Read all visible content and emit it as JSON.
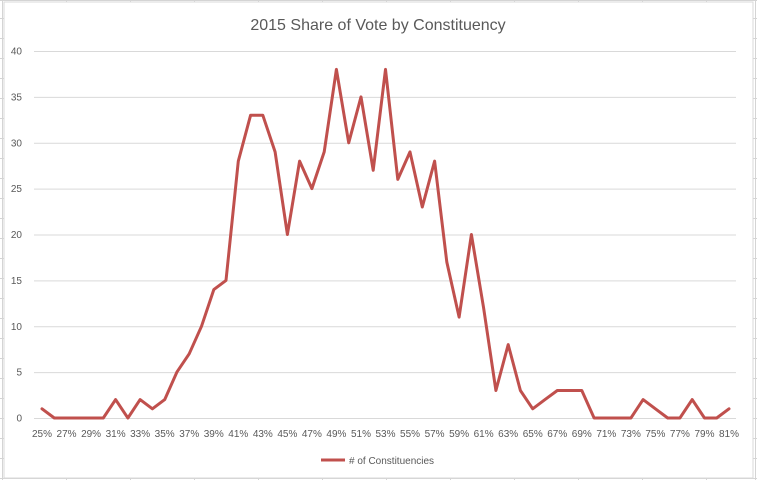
{
  "chart_data": {
    "type": "line",
    "title": "2015 Share of Vote by Constituency",
    "xlabel": "",
    "ylabel": "",
    "ylim": [
      0,
      40
    ],
    "yticks": [
      0,
      5,
      10,
      15,
      20,
      25,
      30,
      35,
      40
    ],
    "grid": true,
    "legend_position": "bottom",
    "categories": [
      "25%",
      "26%",
      "27%",
      "28%",
      "29%",
      "30%",
      "31%",
      "32%",
      "33%",
      "34%",
      "35%",
      "36%",
      "37%",
      "38%",
      "39%",
      "40%",
      "41%",
      "42%",
      "43%",
      "44%",
      "45%",
      "46%",
      "47%",
      "48%",
      "49%",
      "50%",
      "51%",
      "52%",
      "53%",
      "54%",
      "55%",
      "56%",
      "57%",
      "58%",
      "59%",
      "60%",
      "61%",
      "62%",
      "63%",
      "64%",
      "65%",
      "66%",
      "67%",
      "68%",
      "69%",
      "70%",
      "71%",
      "72%",
      "73%",
      "74%",
      "75%",
      "76%",
      "77%",
      "78%",
      "79%",
      "80%",
      "81%"
    ],
    "tick_labels": [
      "25%",
      "27%",
      "29%",
      "31%",
      "33%",
      "35%",
      "37%",
      "39%",
      "41%",
      "43%",
      "45%",
      "47%",
      "49%",
      "51%",
      "53%",
      "55%",
      "57%",
      "59%",
      "61%",
      "63%",
      "65%",
      "67%",
      "69%",
      "71%",
      "73%",
      "75%",
      "77%",
      "79%",
      "81%"
    ],
    "series": [
      {
        "name": "# of Constituencies",
        "color": "#c0504d",
        "values": [
          1,
          0,
          0,
          0,
          0,
          0,
          2,
          0,
          2,
          1,
          2,
          5,
          7,
          10,
          14,
          15,
          28,
          33,
          33,
          29,
          20,
          28,
          25,
          29,
          38,
          30,
          35,
          27,
          38,
          26,
          29,
          23,
          28,
          17,
          11,
          20,
          12,
          3,
          8,
          3,
          1,
          2,
          3,
          3,
          3,
          0,
          0,
          0,
          0,
          2,
          1,
          0,
          0,
          2,
          0,
          0,
          1
        ]
      }
    ]
  }
}
